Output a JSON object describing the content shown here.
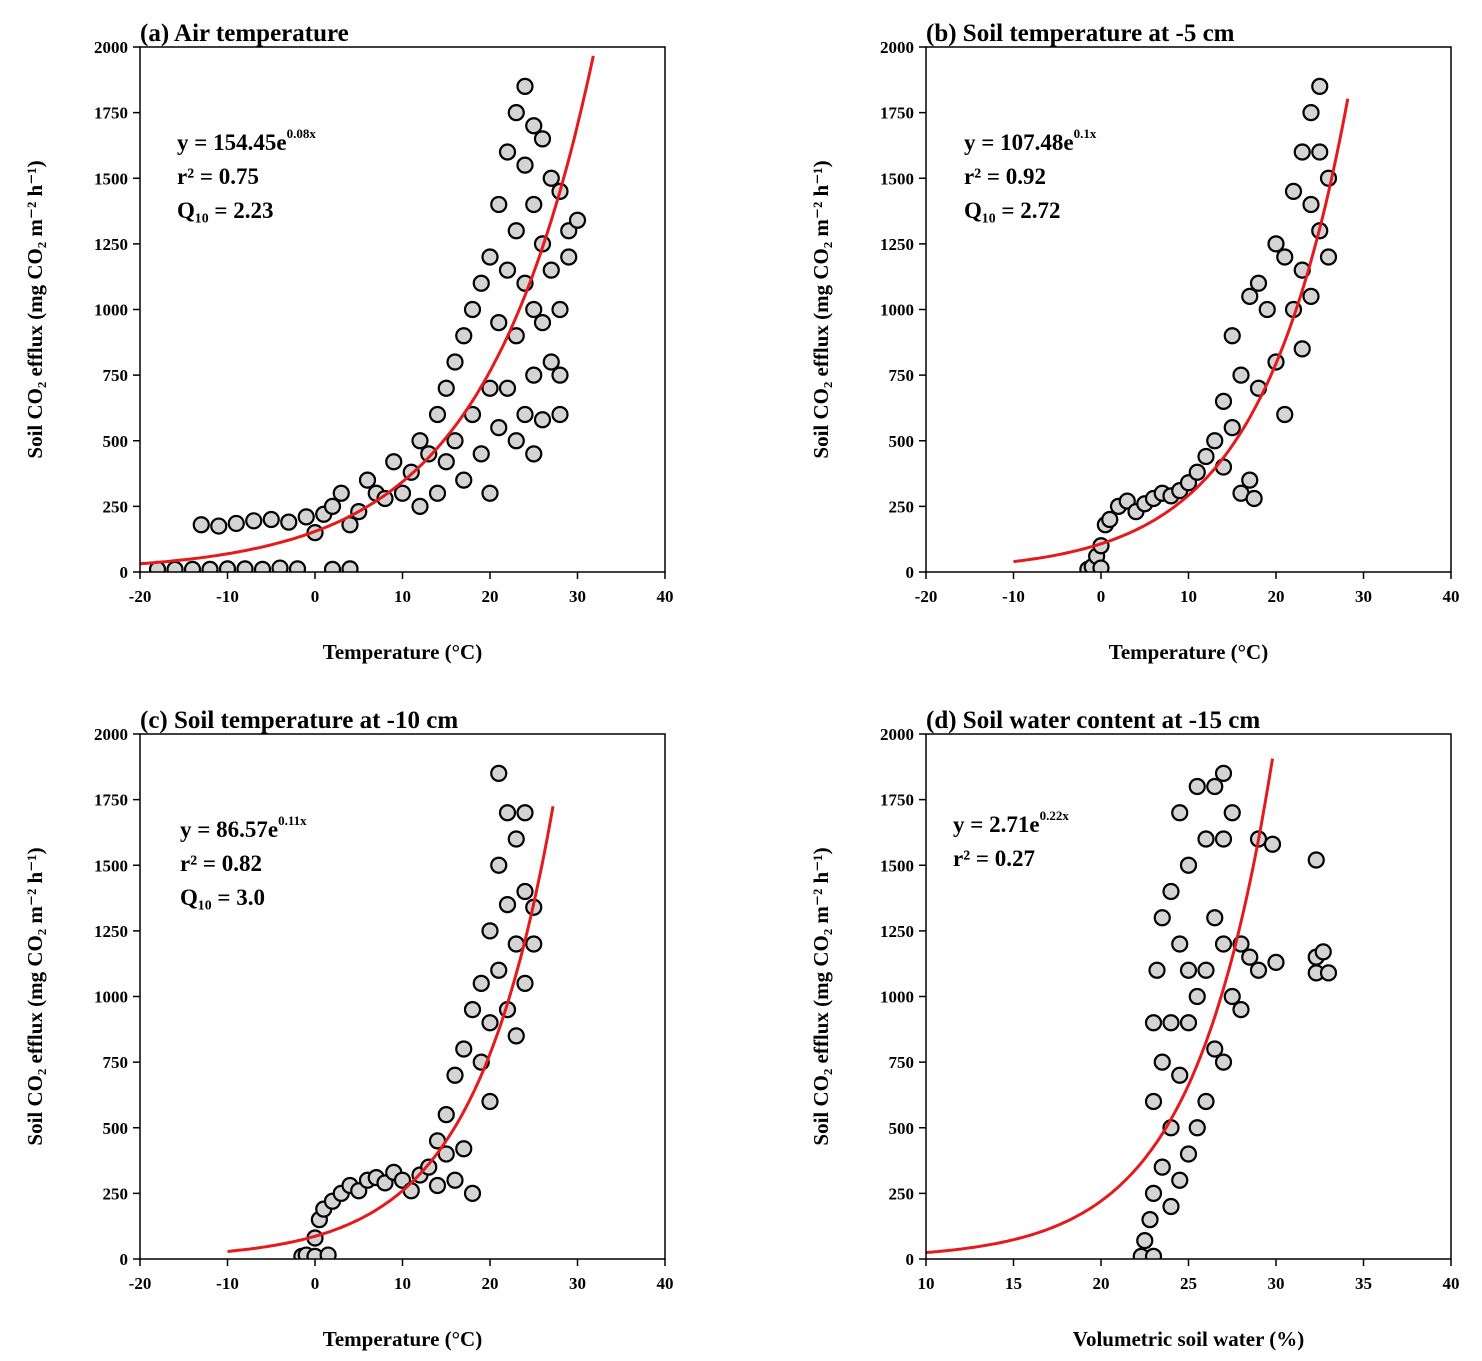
{
  "ylabel": "Soil CO₂ efflux (mg CO₂ m⁻² h⁻¹)",
  "colors": {
    "fit": "#e41a1c",
    "point_fill": "#d4d4d4",
    "point_stroke": "#000000"
  },
  "chart_data": [
    {
      "type": "scatter",
      "title": "(a) Air temperature",
      "xlabel": "Temperature (°C)",
      "xlim": [
        -20,
        40
      ],
      "ylim": [
        0,
        2000
      ],
      "xticks": [
        "-20",
        "-10",
        "0",
        "10",
        "20",
        "30",
        "40"
      ],
      "yticks": [
        "0",
        "250",
        "500",
        "750",
        "1000",
        "1250",
        "1500",
        "1750",
        "2000"
      ],
      "equation": {
        "prefix": "y = 154.45e",
        "exponent": "0.08x"
      },
      "r2": "r² = 0.75",
      "q10": "Q₁₀ = 2.23",
      "fit": {
        "a": 154.45,
        "b": 0.08,
        "x_range": [
          -20,
          31.8
        ]
      },
      "points": [
        [
          -18,
          10
        ],
        [
          -16,
          10
        ],
        [
          -14,
          10
        ],
        [
          -12,
          10
        ],
        [
          -10,
          12
        ],
        [
          -8,
          12
        ],
        [
          -6,
          10
        ],
        [
          -4,
          15
        ],
        [
          -2,
          12
        ],
        [
          2,
          10
        ],
        [
          4,
          12
        ],
        [
          -13,
          180
        ],
        [
          -11,
          175
        ],
        [
          -9,
          185
        ],
        [
          -7,
          195
        ],
        [
          -5,
          200
        ],
        [
          -3,
          190
        ],
        [
          -1,
          210
        ],
        [
          0,
          150
        ],
        [
          1,
          220
        ],
        [
          2,
          250
        ],
        [
          3,
          300
        ],
        [
          4,
          180
        ],
        [
          5,
          230
        ],
        [
          6,
          350
        ],
        [
          7,
          300
        ],
        [
          8,
          280
        ],
        [
          9,
          420
        ],
        [
          10,
          300
        ],
        [
          11,
          380
        ],
        [
          12,
          500
        ],
        [
          12,
          250
        ],
        [
          13,
          450
        ],
        [
          14,
          600
        ],
        [
          14,
          300
        ],
        [
          15,
          700
        ],
        [
          15,
          420
        ],
        [
          16,
          800
        ],
        [
          16,
          500
        ],
        [
          17,
          900
        ],
        [
          17,
          350
        ],
        [
          18,
          1000
        ],
        [
          18,
          600
        ],
        [
          19,
          1100
        ],
        [
          19,
          450
        ],
        [
          20,
          1200
        ],
        [
          20,
          700
        ],
        [
          20,
          300
        ],
        [
          21,
          1400
        ],
        [
          21,
          950
        ],
        [
          21,
          550
        ],
        [
          22,
          1600
        ],
        [
          22,
          1150
        ],
        [
          22,
          700
        ],
        [
          23,
          1750
        ],
        [
          23,
          1300
        ],
        [
          23,
          900
        ],
        [
          23,
          500
        ],
        [
          24,
          1850
        ],
        [
          24,
          1550
        ],
        [
          24,
          1100
        ],
        [
          24,
          600
        ],
        [
          25,
          1700
        ],
        [
          25,
          1400
        ],
        [
          25,
          1000
        ],
        [
          25,
          750
        ],
        [
          25,
          450
        ],
        [
          26,
          1650
        ],
        [
          26,
          1250
        ],
        [
          26,
          950
        ],
        [
          26,
          580
        ],
        [
          27,
          1500
        ],
        [
          27,
          1150
        ],
        [
          27,
          800
        ],
        [
          28,
          1450
        ],
        [
          28,
          1000
        ],
        [
          28,
          750
        ],
        [
          28,
          600
        ],
        [
          29,
          1300
        ],
        [
          29,
          1200
        ],
        [
          30,
          1340
        ]
      ]
    },
    {
      "type": "scatter",
      "title": "(b) Soil temperature at -5 cm",
      "xlabel": "Temperature (°C)",
      "xlim": [
        -20,
        40
      ],
      "ylim": [
        0,
        2000
      ],
      "xticks": [
        "-20",
        "-10",
        "0",
        "10",
        "20",
        "30",
        "40"
      ],
      "yticks": [
        "0",
        "250",
        "500",
        "750",
        "1000",
        "1250",
        "1500",
        "1750",
        "2000"
      ],
      "equation": {
        "prefix": "y = 107.48e",
        "exponent": "0.1x"
      },
      "r2": "r² = 0.92",
      "q10": "Q₁₀ = 2.72",
      "fit": {
        "a": 107.48,
        "b": 0.1,
        "x_range": [
          -10,
          28.2
        ]
      },
      "points": [
        [
          -1.5,
          10
        ],
        [
          -1,
          20
        ],
        [
          -0.5,
          60
        ],
        [
          0,
          15
        ],
        [
          0,
          100
        ],
        [
          0.5,
          180
        ],
        [
          1,
          200
        ],
        [
          2,
          250
        ],
        [
          3,
          270
        ],
        [
          4,
          230
        ],
        [
          5,
          260
        ],
        [
          6,
          280
        ],
        [
          7,
          300
        ],
        [
          8,
          290
        ],
        [
          9,
          310
        ],
        [
          10,
          340
        ],
        [
          11,
          380
        ],
        [
          12,
          440
        ],
        [
          13,
          500
        ],
        [
          14,
          650
        ],
        [
          14,
          400
        ],
        [
          15,
          900
        ],
        [
          15,
          550
        ],
        [
          16,
          750
        ],
        [
          16,
          300
        ],
        [
          17,
          1050
        ],
        [
          17,
          350
        ],
        [
          17.5,
          280
        ],
        [
          18,
          1100
        ],
        [
          18,
          700
        ],
        [
          19,
          1000
        ],
        [
          20,
          1250
        ],
        [
          20,
          800
        ],
        [
          21,
          1200
        ],
        [
          21,
          600
        ],
        [
          22,
          1450
        ],
        [
          22,
          1000
        ],
        [
          23,
          1600
        ],
        [
          23,
          1150
        ],
        [
          23,
          850
        ],
        [
          24,
          1750
        ],
        [
          24,
          1400
        ],
        [
          24,
          1050
        ],
        [
          25,
          1850
        ],
        [
          25,
          1600
        ],
        [
          25,
          1300
        ],
        [
          26,
          1500
        ],
        [
          26,
          1200
        ]
      ]
    },
    {
      "type": "scatter",
      "title": "(c) Soil temperature at -10 cm",
      "xlabel": "Temperature (°C)",
      "xlim": [
        -20,
        40
      ],
      "ylim": [
        0,
        2000
      ],
      "xticks": [
        "-20",
        "-10",
        "0",
        "10",
        "20",
        "30",
        "40"
      ],
      "yticks": [
        "0",
        "250",
        "500",
        "750",
        "1000",
        "1250",
        "1500",
        "1750",
        "2000"
      ],
      "equation": {
        "prefix": "y = 86.57e",
        "exponent": "0.11x"
      },
      "r2": "r² = 0.82",
      "q10": "Q₁₀ = 3.0",
      "fit": {
        "a": 86.57,
        "b": 0.11,
        "x_range": [
          -10,
          27.2
        ]
      },
      "points": [
        [
          -1.5,
          10
        ],
        [
          -1,
          15
        ],
        [
          0,
          10
        ],
        [
          0,
          80
        ],
        [
          0.5,
          150
        ],
        [
          1,
          190
        ],
        [
          1.5,
          15
        ],
        [
          2,
          220
        ],
        [
          3,
          250
        ],
        [
          4,
          280
        ],
        [
          5,
          260
        ],
        [
          6,
          300
        ],
        [
          7,
          310
        ],
        [
          8,
          290
        ],
        [
          9,
          330
        ],
        [
          10,
          300
        ],
        [
          11,
          260
        ],
        [
          12,
          320
        ],
        [
          13,
          350
        ],
        [
          14,
          450
        ],
        [
          14,
          280
        ],
        [
          15,
          550
        ],
        [
          15,
          400
        ],
        [
          16,
          700
        ],
        [
          16,
          300
        ],
        [
          17,
          800
        ],
        [
          17,
          420
        ],
        [
          18,
          950
        ],
        [
          18,
          250
        ],
        [
          19,
          1050
        ],
        [
          19,
          750
        ],
        [
          20,
          1250
        ],
        [
          20,
          900
        ],
        [
          20,
          600
        ],
        [
          21,
          1500
        ],
        [
          21,
          1100
        ],
        [
          21,
          1850
        ],
        [
          22,
          1700
        ],
        [
          22,
          1350
        ],
        [
          22,
          950
        ],
        [
          23,
          1600
        ],
        [
          23,
          1200
        ],
        [
          23,
          850
        ],
        [
          24,
          1700
        ],
        [
          24,
          1400
        ],
        [
          24,
          1050
        ],
        [
          25,
          1340
        ],
        [
          25,
          1200
        ]
      ]
    },
    {
      "type": "scatter",
      "title": "(d) Soil water content at -15 cm",
      "xlabel": "Volumetric soil water (%)",
      "xlim": [
        10,
        40
      ],
      "ylim": [
        0,
        2000
      ],
      "xticks": [
        "10",
        "15",
        "20",
        "25",
        "30",
        "35",
        "40"
      ],
      "yticks": [
        "0",
        "250",
        "500",
        "750",
        "1000",
        "1250",
        "1500",
        "1750",
        "2000"
      ],
      "equation": {
        "prefix": "y = 2.71e",
        "exponent": "0.22x"
      },
      "r2": "r² = 0.27",
      "q10": "",
      "fit": {
        "a": 2.71,
        "b": 0.22,
        "x_range": [
          10,
          29.8
        ]
      },
      "points": [
        [
          22.3,
          10
        ],
        [
          22.5,
          70
        ],
        [
          22.8,
          150
        ],
        [
          23,
          10
        ],
        [
          23,
          250
        ],
        [
          23,
          600
        ],
        [
          23,
          900
        ],
        [
          23.2,
          1100
        ],
        [
          23.5,
          350
        ],
        [
          23.5,
          750
        ],
        [
          23.5,
          1300
        ],
        [
          24,
          200
        ],
        [
          24,
          500
        ],
        [
          24,
          900
        ],
        [
          24,
          1400
        ],
        [
          24.5,
          300
        ],
        [
          24.5,
          700
        ],
        [
          24.5,
          1200
        ],
        [
          24.5,
          1700
        ],
        [
          25,
          400
        ],
        [
          25,
          900
        ],
        [
          25,
          1100
        ],
        [
          25,
          1500
        ],
        [
          25.5,
          500
        ],
        [
          25.5,
          1000
        ],
        [
          25.5,
          1800
        ],
        [
          26,
          600
        ],
        [
          26,
          1100
        ],
        [
          26,
          1600
        ],
        [
          26.5,
          800
        ],
        [
          26.5,
          1300
        ],
        [
          26.5,
          1800
        ],
        [
          27,
          750
        ],
        [
          27,
          1200
        ],
        [
          27,
          1600
        ],
        [
          27,
          1850
        ],
        [
          27.5,
          1000
        ],
        [
          27.5,
          1700
        ],
        [
          28,
          1200
        ],
        [
          28,
          950
        ],
        [
          28.5,
          1150
        ],
        [
          29,
          1600
        ],
        [
          29,
          1100
        ],
        [
          29.8,
          1580
        ],
        [
          30,
          1130
        ],
        [
          32.3,
          1520
        ],
        [
          32.3,
          1150
        ],
        [
          32.3,
          1090
        ],
        [
          32.7,
          1170
        ],
        [
          33,
          1090
        ]
      ]
    }
  ]
}
